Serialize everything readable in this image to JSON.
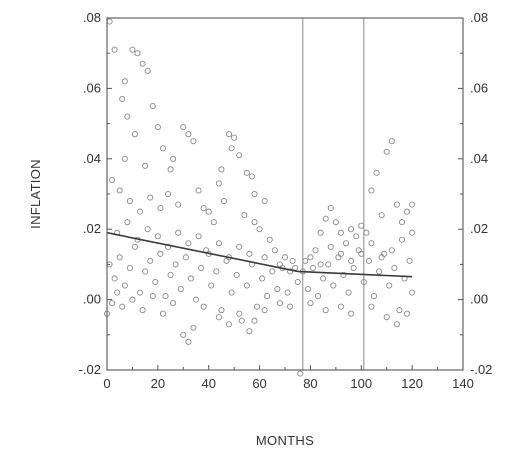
{
  "chart_data": {
    "type": "scatter",
    "title": "",
    "xlabel": "MONTHS",
    "ylabel": "INFLATION",
    "xlim": [
      0,
      140
    ],
    "ylim": [
      -0.02,
      0.08
    ],
    "x_ticks": [
      0,
      20,
      40,
      60,
      80,
      100,
      120,
      140
    ],
    "x_tick_labels": [
      "0",
      "20",
      "40",
      "60",
      "80",
      "100",
      "120",
      "140"
    ],
    "y_ticks": [
      -0.02,
      0.0,
      0.02,
      0.04,
      0.06,
      0.08
    ],
    "y_tick_labels": [
      "-.02",
      ".00",
      ".02",
      ".04",
      ".06",
      ".08"
    ],
    "right_axis_labels": true,
    "vertical_reference_lines": [
      77,
      101
    ],
    "grid": false,
    "marker": "open-circle",
    "series": [
      {
        "points": [
          [
            1,
            0.079
          ],
          [
            3,
            0.071
          ],
          [
            7,
            0.062
          ],
          [
            10,
            0.071
          ],
          [
            12,
            0.07
          ],
          [
            14,
            0.067
          ],
          [
            16,
            0.065
          ],
          [
            6,
            0.057
          ],
          [
            8,
            0.052
          ],
          [
            11,
            0.047
          ],
          [
            18,
            0.055
          ],
          [
            20,
            0.049
          ],
          [
            22,
            0.043
          ],
          [
            26,
            0.04
          ],
          [
            30,
            0.049
          ],
          [
            32,
            0.047
          ],
          [
            34,
            0.045
          ],
          [
            48,
            0.047
          ],
          [
            50,
            0.046
          ],
          [
            52,
            0.041
          ],
          [
            55,
            0.036
          ],
          [
            58,
            0.03
          ],
          [
            112,
            0.045
          ],
          [
            110,
            0.042
          ],
          [
            106,
            0.036
          ],
          [
            104,
            0.031
          ],
          [
            2,
            0.034
          ],
          [
            5,
            0.031
          ],
          [
            9,
            0.028
          ],
          [
            13,
            0.025
          ],
          [
            17,
            0.029
          ],
          [
            21,
            0.026
          ],
          [
            24,
            0.03
          ],
          [
            28,
            0.027
          ],
          [
            36,
            0.031
          ],
          [
            38,
            0.026
          ],
          [
            42,
            0.022
          ],
          [
            46,
            0.028
          ],
          [
            54,
            0.024
          ],
          [
            60,
            0.02
          ],
          [
            64,
            0.017
          ],
          [
            66,
            0.014
          ],
          [
            70,
            0.012
          ],
          [
            74,
            0.009
          ],
          [
            78,
            0.011
          ],
          [
            82,
            0.014
          ],
          [
            84,
            0.019
          ],
          [
            86,
            0.023
          ],
          [
            88,
            0.026
          ],
          [
            90,
            0.022
          ],
          [
            92,
            0.019
          ],
          [
            94,
            0.016
          ],
          [
            96,
            0.02
          ],
          [
            98,
            0.018
          ],
          [
            100,
            0.021
          ],
          [
            102,
            0.019
          ],
          [
            108,
            0.024
          ],
          [
            114,
            0.027
          ],
          [
            116,
            0.022
          ],
          [
            118,
            0.025
          ],
          [
            120,
            0.027
          ],
          [
            1,
            0.01
          ],
          [
            3,
            0.006
          ],
          [
            5,
            0.012
          ],
          [
            7,
            0.004
          ],
          [
            9,
            0.009
          ],
          [
            11,
            0.015
          ],
          [
            13,
            0.002
          ],
          [
            15,
            0.008
          ],
          [
            17,
            0.011
          ],
          [
            19,
            0.005
          ],
          [
            21,
            0.013
          ],
          [
            23,
            0.001
          ],
          [
            25,
            0.007
          ],
          [
            27,
            0.01
          ],
          [
            29,
            0.003
          ],
          [
            31,
            0.012
          ],
          [
            33,
            0.006
          ],
          [
            35,
            0.0
          ],
          [
            37,
            0.009
          ],
          [
            39,
            0.014
          ],
          [
            41,
            0.004
          ],
          [
            43,
            0.008
          ],
          [
            45,
            -0.003
          ],
          [
            47,
            0.011
          ],
          [
            49,
            0.002
          ],
          [
            51,
            0.007
          ],
          [
            53,
            -0.006
          ],
          [
            55,
            0.004
          ],
          [
            57,
            0.01
          ],
          [
            59,
            -0.002
          ],
          [
            61,
            0.006
          ],
          [
            63,
            0.001
          ],
          [
            65,
            0.008
          ],
          [
            67,
            0.003
          ],
          [
            69,
            0.009
          ],
          [
            71,
            0.002
          ],
          [
            73,
            0.011
          ],
          [
            75,
            0.005
          ],
          [
            76,
            -0.021
          ],
          [
            77,
            0.008
          ],
          [
            79,
            0.003
          ],
          [
            81,
            0.009
          ],
          [
            83,
            0.001
          ],
          [
            85,
            0.006
          ],
          [
            87,
            0.01
          ],
          [
            89,
            0.004
          ],
          [
            91,
            0.012
          ],
          [
            93,
            0.007
          ],
          [
            95,
            0.002
          ],
          [
            97,
            0.009
          ],
          [
            99,
            0.014
          ],
          [
            101,
            0.005
          ],
          [
            103,
            0.011
          ],
          [
            105,
            0.001
          ],
          [
            107,
            0.008
          ],
          [
            109,
            0.013
          ],
          [
            111,
            0.004
          ],
          [
            113,
            0.009
          ],
          [
            115,
            -0.003
          ],
          [
            117,
            0.006
          ],
          [
            119,
            0.011
          ],
          [
            120,
            0.002
          ],
          [
            0,
            -0.004
          ],
          [
            2,
            -0.001
          ],
          [
            4,
            0.002
          ],
          [
            6,
            -0.002
          ],
          [
            10,
            0.0
          ],
          [
            14,
            -0.003
          ],
          [
            18,
            0.001
          ],
          [
            22,
            -0.004
          ],
          [
            26,
            -0.001
          ],
          [
            30,
            -0.01
          ],
          [
            32,
            -0.012
          ],
          [
            34,
            -0.008
          ],
          [
            38,
            -0.002
          ],
          [
            44,
            -0.005
          ],
          [
            48,
            -0.007
          ],
          [
            52,
            -0.004
          ],
          [
            56,
            -0.009
          ],
          [
            58,
            -0.006
          ],
          [
            62,
            -0.003
          ],
          [
            68,
            -0.001
          ],
          [
            72,
            -0.002
          ],
          [
            80,
            -0.001
          ],
          [
            86,
            -0.003
          ],
          [
            92,
            -0.002
          ],
          [
            96,
            -0.004
          ],
          [
            104,
            -0.002
          ],
          [
            110,
            -0.005
          ],
          [
            114,
            -0.007
          ],
          [
            118,
            -0.004
          ],
          [
            4,
            0.019
          ],
          [
            8,
            0.022
          ],
          [
            12,
            0.017
          ],
          [
            16,
            0.02
          ],
          [
            20,
            0.018
          ],
          [
            24,
            0.015
          ],
          [
            28,
            0.019
          ],
          [
            32,
            0.016
          ],
          [
            36,
            0.018
          ],
          [
            40,
            0.013
          ],
          [
            44,
            0.016
          ],
          [
            48,
            0.012
          ],
          [
            52,
            0.015
          ],
          [
            56,
            0.013
          ],
          [
            62,
            0.012
          ],
          [
            68,
            0.01
          ],
          [
            72,
            0.008
          ],
          [
            80,
            0.012
          ],
          [
            84,
            0.01
          ],
          [
            88,
            0.015
          ],
          [
            92,
            0.013
          ],
          [
            96,
            0.011
          ],
          [
            100,
            0.013
          ],
          [
            104,
            0.016
          ],
          [
            108,
            0.012
          ],
          [
            112,
            0.014
          ],
          [
            116,
            0.017
          ],
          [
            120,
            0.019
          ],
          [
            40,
            0.025
          ],
          [
            44,
            0.033
          ],
          [
            57,
            0.035
          ],
          [
            62,
            0.028
          ],
          [
            45,
            0.037
          ],
          [
            49,
            0.043
          ],
          [
            58,
            0.022
          ],
          [
            7,
            0.04
          ],
          [
            15,
            0.038
          ],
          [
            25,
            0.037
          ]
        ]
      },
      {
        "type": "line",
        "points": [
          [
            0,
            0.019
          ],
          [
            75,
            0.008
          ],
          [
            120,
            0.0065
          ]
        ]
      }
    ]
  }
}
